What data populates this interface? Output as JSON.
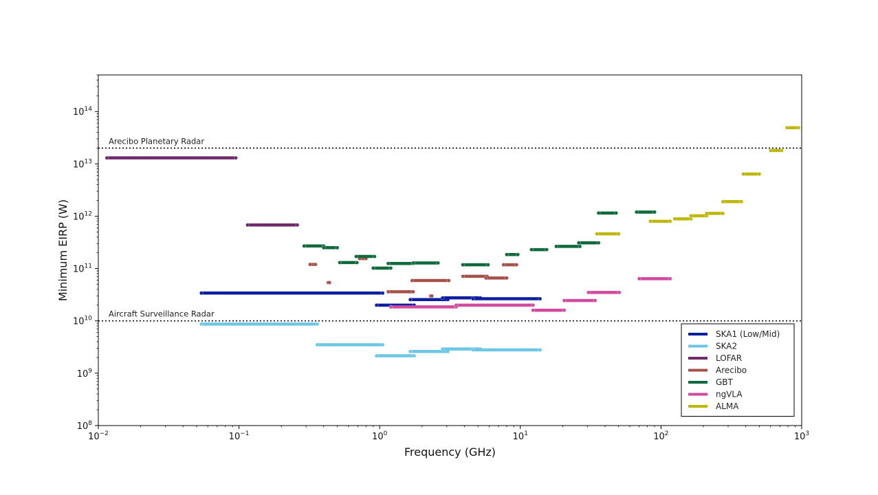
{
  "chart_data": {
    "type": "line",
    "title": "",
    "xlabel": "Frequency (GHz)",
    "ylabel": "Minimum EIRP (W)",
    "xscale": "log",
    "yscale": "log",
    "xlim": [
      0.01,
      1000
    ],
    "ylim": [
      100000000.0,
      500000000000000.0
    ],
    "x_ticks": [
      {
        "value": 0.01,
        "base": "10",
        "exp": "−2"
      },
      {
        "value": 0.1,
        "base": "10",
        "exp": "−1"
      },
      {
        "value": 1,
        "base": "10",
        "exp": "0"
      },
      {
        "value": 10,
        "base": "10",
        "exp": "1"
      },
      {
        "value": 100,
        "base": "10",
        "exp": "2"
      },
      {
        "value": 1000,
        "base": "10",
        "exp": "3"
      }
    ],
    "y_ticks": [
      {
        "value": 100000000.0,
        "base": "10",
        "exp": "8"
      },
      {
        "value": 1000000000.0,
        "base": "10",
        "exp": "9"
      },
      {
        "value": 10000000000.0,
        "base": "10",
        "exp": "10"
      },
      {
        "value": 100000000000.0,
        "base": "10",
        "exp": "11"
      },
      {
        "value": 1000000000000.0,
        "base": "10",
        "exp": "12"
      },
      {
        "value": 10000000000000.0,
        "base": "10",
        "exp": "13"
      },
      {
        "value": 100000000000000.0,
        "base": "10",
        "exp": "14"
      }
    ],
    "grid": false,
    "legend_position": "lower-right",
    "reference_lines": [
      {
        "label": "Arecibo Planetary Radar",
        "y": 20000000000000.0
      },
      {
        "label": "Aircraft Surveillance Radar",
        "y": 10000000000.0
      }
    ],
    "series": [
      {
        "name": "SKA1 (Low/Mid)",
        "color": "#0a1fa0",
        "segments": [
          {
            "x": [
              0.054,
              1.05
            ],
            "y": 34000000000.0
          },
          {
            "x": [
              0.95,
              1.76
            ],
            "y": 20000000000.0
          },
          {
            "x": [
              1.65,
              3.05
            ],
            "y": 25500000000.0
          },
          {
            "x": [
              2.8,
              5.2
            ],
            "y": 27500000000.0
          },
          {
            "x": [
              4.6,
              13.8
            ],
            "y": 26500000000.0
          }
        ]
      },
      {
        "name": "SKA2",
        "color": "#6cc6e6",
        "segments": [
          {
            "x": [
              0.054,
              0.36
            ],
            "y": 8700000000.0
          },
          {
            "x": [
              0.36,
              1.05
            ],
            "y": 3500000000.0
          },
          {
            "x": [
              0.95,
              1.76
            ],
            "y": 2150000000.0
          },
          {
            "x": [
              1.65,
              3.05
            ],
            "y": 2600000000.0
          },
          {
            "x": [
              2.8,
              5.2
            ],
            "y": 2900000000.0
          },
          {
            "x": [
              4.6,
              13.8
            ],
            "y": 2800000000.0
          }
        ]
      },
      {
        "name": "LOFAR",
        "color": "#6e2a6a",
        "segments": [
          {
            "x": [
              0.0115,
              0.095
            ],
            "y": 13000000000000.0
          },
          {
            "x": [
              0.115,
              0.26
            ],
            "y": 680000000000.0
          }
        ]
      },
      {
        "name": "Arecibo",
        "color": "#a6504a",
        "segments": [
          {
            "x": [
              0.32,
              0.35
            ],
            "y": 120000000000.0
          },
          {
            "x": [
              0.43,
              0.44
            ],
            "y": 54000000000.0
          },
          {
            "x": [
              0.72,
              0.8
            ],
            "y": 155000000000.0
          },
          {
            "x": [
              1.15,
              1.73
            ],
            "y": 36000000000.0
          },
          {
            "x": [
              2.3,
              2.35
            ],
            "y": 30000000000.0
          },
          {
            "x": [
              1.7,
              3.1
            ],
            "y": 59000000000.0
          },
          {
            "x": [
              3.9,
              5.8
            ],
            "y": 71000000000.0
          },
          {
            "x": [
              5.7,
              8.0
            ],
            "y": 66000000000.0
          },
          {
            "x": [
              7.6,
              9.4
            ],
            "y": 118000000000.0
          }
        ]
      },
      {
        "name": "GBT",
        "color": "#0e6a3a",
        "segments": [
          {
            "x": [
              0.29,
              0.4
            ],
            "y": 270000000000.0
          },
          {
            "x": [
              0.4,
              0.5
            ],
            "y": 250000000000.0
          },
          {
            "x": [
              0.52,
              0.69
            ],
            "y": 130000000000.0
          },
          {
            "x": [
              0.68,
              0.92
            ],
            "y": 170000000000.0
          },
          {
            "x": [
              0.9,
              1.2
            ],
            "y": 102000000000.0
          },
          {
            "x": [
              1.15,
              1.73
            ],
            "y": 125000000000.0
          },
          {
            "x": [
              1.73,
              2.6
            ],
            "y": 128000000000.0
          },
          {
            "x": [
              3.9,
              5.9
            ],
            "y": 118000000000.0
          },
          {
            "x": [
              8.0,
              9.6
            ],
            "y": 185000000000.0
          },
          {
            "x": [
              12.0,
              15.4
            ],
            "y": 230000000000.0
          },
          {
            "x": [
              18.0,
              26.5
            ],
            "y": 265000000000.0
          },
          {
            "x": [
              26.0,
              36.0
            ],
            "y": 310000000000.0
          },
          {
            "x": [
              36.0,
              48.0
            ],
            "y": 1150000000000.0
          },
          {
            "x": [
              67.0,
              90.0
            ],
            "y": 1200000000000.0
          }
        ]
      },
      {
        "name": "ngVLA",
        "color": "#d24a9e",
        "segments": [
          {
            "x": [
              1.2,
              3.5
            ],
            "y": 18500000000.0
          },
          {
            "x": [
              3.5,
              12.3
            ],
            "y": 20000000000.0
          },
          {
            "x": [
              12.3,
              20.5
            ],
            "y": 16000000000.0
          },
          {
            "x": [
              20.5,
              34.0
            ],
            "y": 24500000000.0
          },
          {
            "x": [
              30.5,
              50.5
            ],
            "y": 35000000000.0
          },
          {
            "x": [
              70.0,
              116.0
            ],
            "y": 64000000000.0
          }
        ]
      },
      {
        "name": "ALMA",
        "color": "#bdb70a",
        "segments": [
          {
            "x": [
              35.0,
              50.0
            ],
            "y": 460000000000.0
          },
          {
            "x": [
              84.0,
              116.0
            ],
            "y": 800000000000.0
          },
          {
            "x": [
              125.0,
              163.0
            ],
            "y": 890000000000.0
          },
          {
            "x": [
              163.0,
              211.0
            ],
            "y": 1020000000000.0
          },
          {
            "x": [
              211.0,
              275.0
            ],
            "y": 1130000000000.0
          },
          {
            "x": [
              275.0,
              373.0
            ],
            "y": 1900000000000.0
          },
          {
            "x": [
              385.0,
              500.0
            ],
            "y": 6400000000000.0
          },
          {
            "x": [
              602.0,
              720.0
            ],
            "y": 18000000000000.0
          },
          {
            "x": [
              787.0,
              950.0
            ],
            "y": 49000000000000.0
          }
        ]
      }
    ]
  }
}
